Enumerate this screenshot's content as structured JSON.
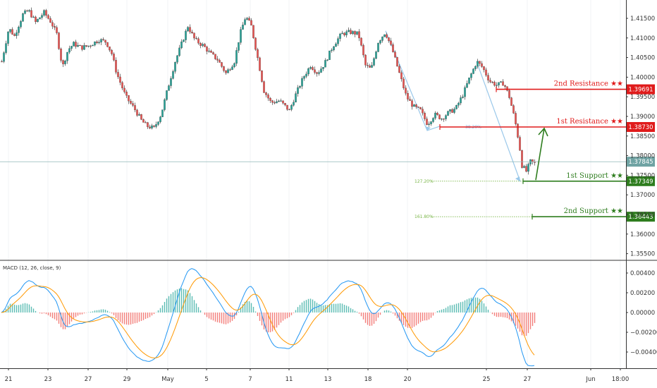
{
  "chart_data": {
    "type": "candlestick",
    "price_axis": {
      "ticks": [
        "1.41500",
        "1.41000",
        "1.40500",
        "1.40000",
        "1.39500",
        "1.39000",
        "1.38500",
        "1.38000",
        "1.37500",
        "1.37000",
        "1.36500",
        "1.36000",
        "1.35500"
      ],
      "range": [
        1.3535,
        1.4195
      ]
    },
    "macd": {
      "title": "MACD (12, 26, close, 9)",
      "ticks": [
        "0.00400",
        "0.00200",
        "0.00000",
        "−0.00200",
        "−0.00400"
      ],
      "range": [
        -0.0055,
        0.005
      ]
    },
    "time_axis": {
      "labels": [
        "21",
        "23",
        "27",
        "29",
        "May",
        "5",
        "7",
        "11",
        "13",
        "18",
        "20",
        "25",
        "27",
        "Jun",
        "18:00"
      ]
    },
    "current_price": {
      "label": "1.37845",
      "value": 1.37845,
      "color": "#6fa3a3"
    },
    "levels": [
      {
        "name": "2nd Resistance ★★",
        "price_label": "1.39691",
        "value": 1.39691,
        "color": "#e01b1b",
        "start_x": 704
      },
      {
        "name": "1st Resistance ★★",
        "price_label": "1.38730",
        "value": 1.3873,
        "color": "#e01b1b",
        "start_x": 624
      },
      {
        "name": "1st Support ★★",
        "price_label": "1.37349",
        "value": 1.37349,
        "color": "#2e7d1e",
        "start_x": 742
      },
      {
        "name": "2nd Support ★★",
        "price_label": "1.36443",
        "value": 1.36443,
        "color": "#2e7d1e",
        "start_x": 755
      }
    ],
    "fib_levels": [
      {
        "label": "38.20%",
        "value": 1.3873,
        "color": "#7fa8d8"
      },
      {
        "label": "127.20%",
        "value": 1.37349,
        "color": "#7ab648"
      },
      {
        "label": "161.80%",
        "value": 1.36443,
        "color": "#7ab648"
      }
    ],
    "colors": {
      "background": "#ffffff",
      "up_candle": "#26a69a",
      "down_candle": "#ef5350",
      "wick": "#444444",
      "macd_line": "#2196f3",
      "signal_line": "#ff9800",
      "hist_up": "#26a69a",
      "hist_down": "#ef5350",
      "arrow": "#2e7d1e",
      "zigzag": "#9ac8ea"
    }
  }
}
